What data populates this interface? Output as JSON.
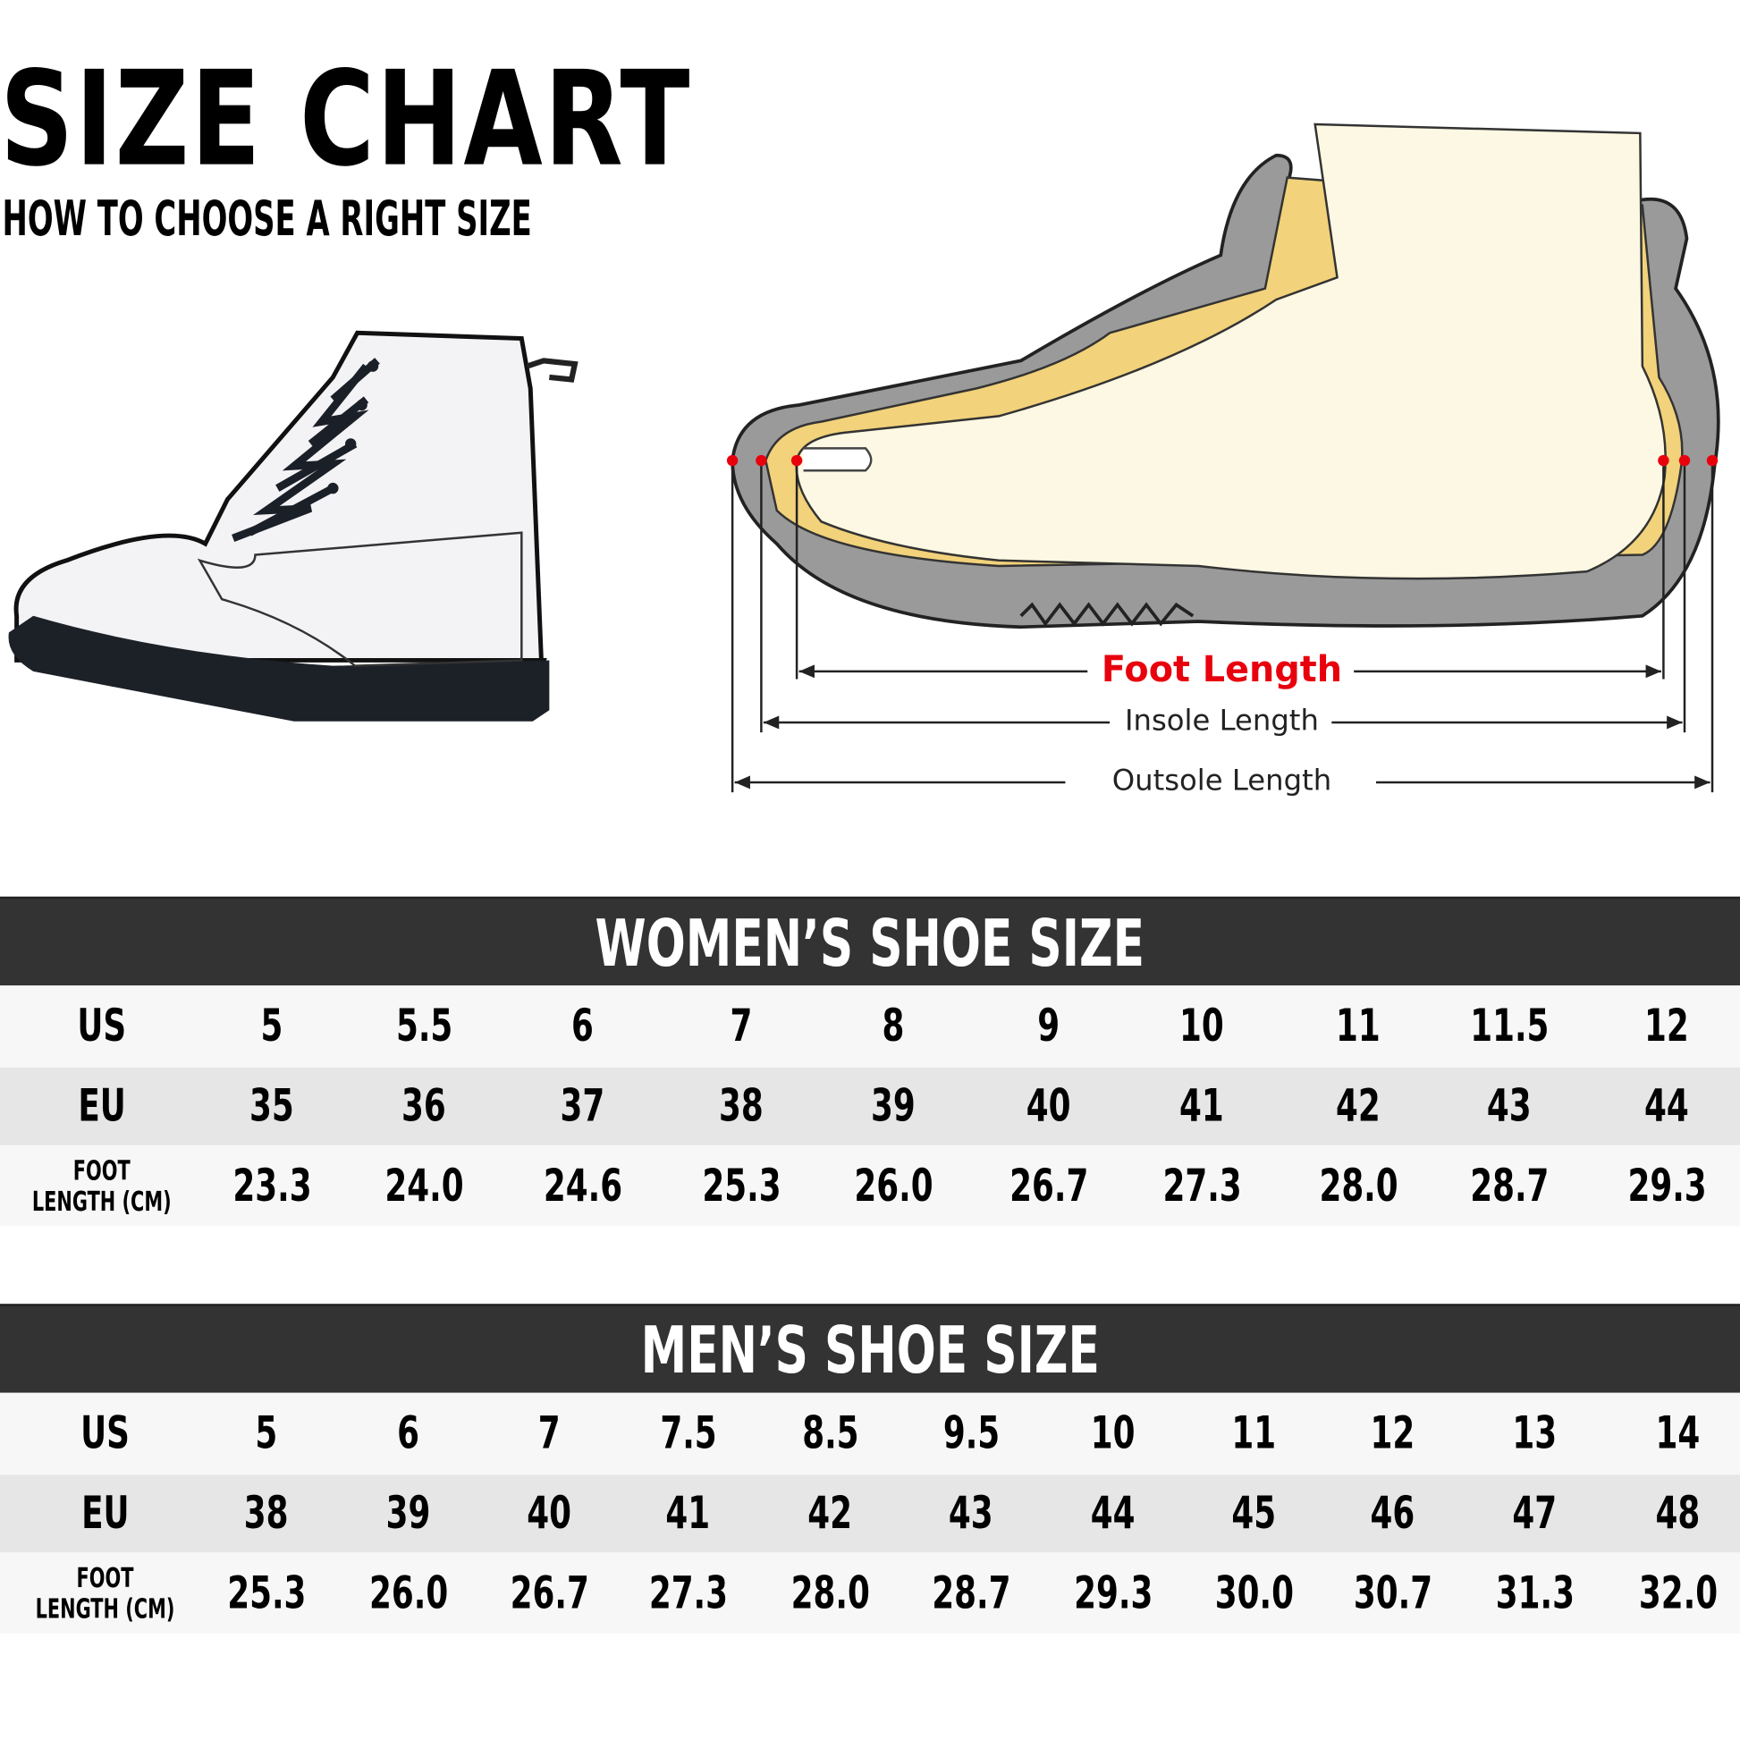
{
  "header": {
    "title": "SIZE CHART",
    "subtitle": "HOW TO CHOOSE A RIGHT SIZE"
  },
  "diagram": {
    "foot_length": "Foot Length",
    "insole_length": "Insole Length",
    "outsole_length": "Outsole Length",
    "accent_color": "#e8000d"
  },
  "women": {
    "title": "WOMEN’S SHOE SIZE",
    "labels": {
      "us": "US",
      "eu": "EU",
      "foot1": "FOOT",
      "foot2": "LENGTH (CM)"
    },
    "us": [
      "5",
      "5.5",
      "6",
      "7",
      "8",
      "9",
      "10",
      "11",
      "11.5",
      "12"
    ],
    "eu": [
      "35",
      "36",
      "37",
      "38",
      "39",
      "40",
      "41",
      "42",
      "43",
      "44"
    ],
    "foot": [
      "23.3",
      "24.0",
      "24.6",
      "25.3",
      "26.0",
      "26.7",
      "27.3",
      "28.0",
      "28.7",
      "29.3"
    ]
  },
  "men": {
    "title": "MEN’S SHOE SIZE",
    "labels": {
      "us": "US",
      "eu": "EU",
      "foot1": "FOOT",
      "foot2": "LENGTH (CM)"
    },
    "us": [
      "5",
      "6",
      "7",
      "7.5",
      "8.5",
      "9.5",
      "10",
      "11",
      "12",
      "13",
      "14"
    ],
    "eu": [
      "38",
      "39",
      "40",
      "41",
      "42",
      "43",
      "44",
      "45",
      "46",
      "47",
      "48"
    ],
    "foot": [
      "25.3",
      "26.0",
      "26.7",
      "27.3",
      "28.0",
      "28.7",
      "29.3",
      "30.0",
      "30.7",
      "31.3",
      "32.0"
    ]
  }
}
